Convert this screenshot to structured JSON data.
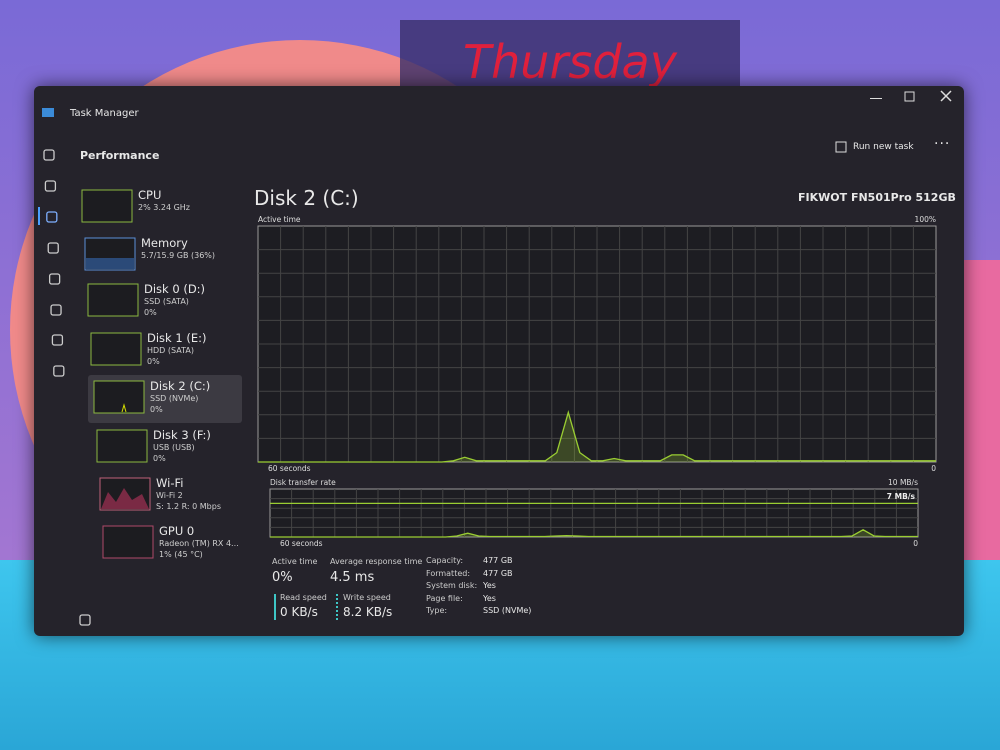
{
  "wallpaper": {
    "day": "Thursday"
  },
  "window": {
    "title": "Task Manager",
    "section": "Performance",
    "run_new_task": "Run new task"
  },
  "sidebar": [
    {
      "name": "CPU",
      "lines": [
        "2% 3.24 GHz"
      ]
    },
    {
      "name": "Memory",
      "lines": [
        "5.7/15.9 GB (36%)"
      ]
    },
    {
      "name": "Disk 0 (D:)",
      "lines": [
        "SSD (SATA)",
        "0%"
      ]
    },
    {
      "name": "Disk 1 (E:)",
      "lines": [
        "HDD (SATA)",
        "0%"
      ]
    },
    {
      "name": "Disk 2 (C:)",
      "lines": [
        "SSD (NVMe)",
        "0%"
      ]
    },
    {
      "name": "Disk 3 (F:)",
      "lines": [
        "USB (USB)",
        "0%"
      ]
    },
    {
      "name": "Wi-Fi",
      "lines": [
        "Wi-Fi 2",
        "S: 1.2  R: 0 Mbps"
      ]
    },
    {
      "name": "GPU 0",
      "lines": [
        "Radeon (TM) RX 4...",
        "1% (45 °C)"
      ]
    }
  ],
  "detail": {
    "title": "Disk 2 (C:)",
    "model": "FIKWOT FN501Pro 512GB",
    "active_time_chart": {
      "type": "line",
      "label": "Active time",
      "time_label": "60 seconds",
      "ylim": [
        0,
        100
      ],
      "yticks": [
        0,
        {
          "value": 100,
          "label": "100%"
        }
      ],
      "color": "#9acd32",
      "values": [
        0,
        0,
        0,
        0,
        0,
        0,
        0,
        0,
        0,
        0,
        0,
        0,
        0,
        0,
        0,
        0,
        0,
        0.5,
        2,
        0.5,
        0.5,
        0.5,
        0.5,
        0.5,
        0.5,
        0.5,
        4,
        21,
        4,
        0.5,
        0.5,
        1.5,
        0.5,
        0.5,
        0.5,
        0.5,
        3,
        3,
        0.5,
        0.5,
        0.5,
        0.5,
        0.5,
        0.5,
        0.5,
        0.5,
        0.5,
        0.5,
        0.5,
        0.5,
        0.5,
        0.5,
        0.5,
        0.5,
        0.5,
        0.5,
        0.5,
        0.5,
        0.5,
        0.5
      ]
    },
    "transfer_chart": {
      "type": "line",
      "label": "Disk transfer rate",
      "time_label": "60 seconds",
      "ylim": [
        0,
        10
      ],
      "yticks": [
        0,
        {
          "value": 10,
          "label": "10 MB/s"
        }
      ],
      "marker": {
        "value": 7,
        "label": "7 MB/s"
      },
      "color": "#9acd32",
      "values": [
        0,
        0,
        0,
        0,
        0,
        0,
        0,
        0,
        0,
        0,
        0,
        0,
        0,
        0,
        0,
        0,
        0,
        0.2,
        0.8,
        0.2,
        0.1,
        0.1,
        0.1,
        0.1,
        0.1,
        0.1,
        0.2,
        0.3,
        0.2,
        0.1,
        0.1,
        0.1,
        0.1,
        0.1,
        0.1,
        0.1,
        0.1,
        0.1,
        0.1,
        0.1,
        0.1,
        0.1,
        0.1,
        0.1,
        0.1,
        0.1,
        0.1,
        0.1,
        0.1,
        0.1,
        0.1,
        0.1,
        0.1,
        0.2,
        1.5,
        0.2,
        0.1,
        0.1,
        0.1,
        0.1
      ]
    },
    "stats": [
      {
        "label": "Active time",
        "value": "0%"
      },
      {
        "label": "Average response time",
        "value": "4.5 ms"
      },
      {
        "label": "Read speed",
        "value": "0 KB/s"
      },
      {
        "label": "Write speed",
        "value": "8.2 KB/s"
      }
    ],
    "properties": [
      [
        "Capacity:",
        "477 GB"
      ],
      [
        "Formatted:",
        "477 GB"
      ],
      [
        "System disk:",
        "Yes"
      ],
      [
        "Page file:",
        "Yes"
      ],
      [
        "Type:",
        "SSD (NVMe)"
      ]
    ]
  }
}
